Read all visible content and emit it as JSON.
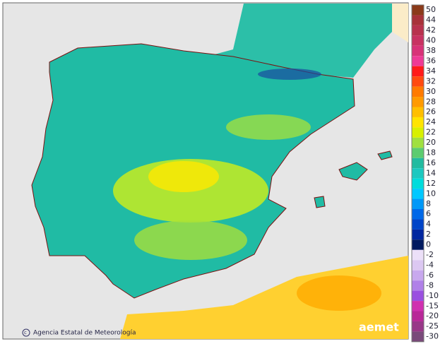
{
  "attribution": "Agencia Estatal de Meteorología",
  "logo": "aemet",
  "legend": {
    "items": [
      {
        "value": 50,
        "color": "#8b3a1a"
      },
      {
        "value": 44,
        "color": "#a8323a"
      },
      {
        "value": 42,
        "color": "#b8324e"
      },
      {
        "value": 40,
        "color": "#c83262"
      },
      {
        "value": 38,
        "color": "#d83278"
      },
      {
        "value": 36,
        "color": "#ee3a96"
      },
      {
        "value": 34,
        "color": "#ff1a1a"
      },
      {
        "value": 32,
        "color": "#ff4a10"
      },
      {
        "value": 30,
        "color": "#ff7a00"
      },
      {
        "value": 28,
        "color": "#ff9a00"
      },
      {
        "value": 26,
        "color": "#ffbf00"
      },
      {
        "value": 24,
        "color": "#ffe400"
      },
      {
        "value": 22,
        "color": "#d8f000"
      },
      {
        "value": 20,
        "color": "#a0e040"
      },
      {
        "value": 18,
        "color": "#5ccc70"
      },
      {
        "value": 16,
        "color": "#22bba0"
      },
      {
        "value": 14,
        "color": "#1cc8c0"
      },
      {
        "value": 12,
        "color": "#00dcdc"
      },
      {
        "value": 10,
        "color": "#00c8ff"
      },
      {
        "value": 8,
        "color": "#0098f8"
      },
      {
        "value": 6,
        "color": "#0068e8"
      },
      {
        "value": 4,
        "color": "#0044c8"
      },
      {
        "value": 2,
        "color": "#0026a0"
      },
      {
        "value": 0,
        "color": "#001a60"
      },
      {
        "value": -2,
        "color": "#ece0f8"
      },
      {
        "value": -4,
        "color": "#dcc8f2"
      },
      {
        "value": -6,
        "color": "#c8a8ee"
      },
      {
        "value": -8,
        "color": "#b080e8"
      },
      {
        "value": -10,
        "color": "#9a50e0"
      },
      {
        "value": -15,
        "color": "#d030b0"
      },
      {
        "value": -20,
        "color": "#b82898"
      },
      {
        "value": -25,
        "color": "#983888"
      },
      {
        "value": -30,
        "color": "#7a4a7a"
      }
    ]
  }
}
